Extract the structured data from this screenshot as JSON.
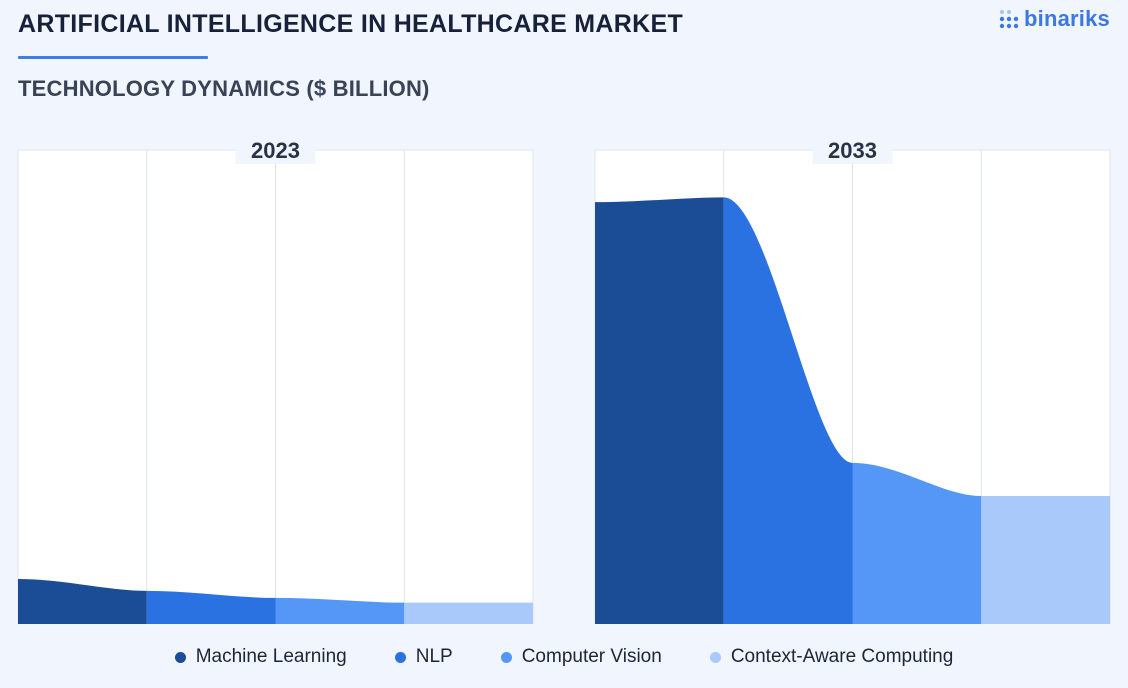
{
  "header": {
    "title": "ARTIFICIAL INTELLIGENCE IN HEALTHCARE MARKET",
    "subtitle": "TECHNOLOGY DYNAMICS ($ BILLION)"
  },
  "logo": {
    "text": "binariks",
    "icon": "grid-dots-icon"
  },
  "colors": {
    "accent": "#3d7ee6",
    "series": [
      "#1b4d96",
      "#2a72e1",
      "#5497f6",
      "#a9c9fb"
    ]
  },
  "chart_data": {
    "type": "area",
    "categories": [
      "Machine Learning",
      "NLP",
      "Computer Vision",
      "Context-Aware Computing"
    ],
    "panels": [
      {
        "label": "2023",
        "values": [
          9.5,
          7.0,
          5.5,
          4.5
        ]
      },
      {
        "label": "2033",
        "values": [
          89,
          90,
          34,
          27
        ]
      }
    ],
    "ylim": [
      0,
      100
    ],
    "grid": true,
    "legend_position": "bottom"
  }
}
